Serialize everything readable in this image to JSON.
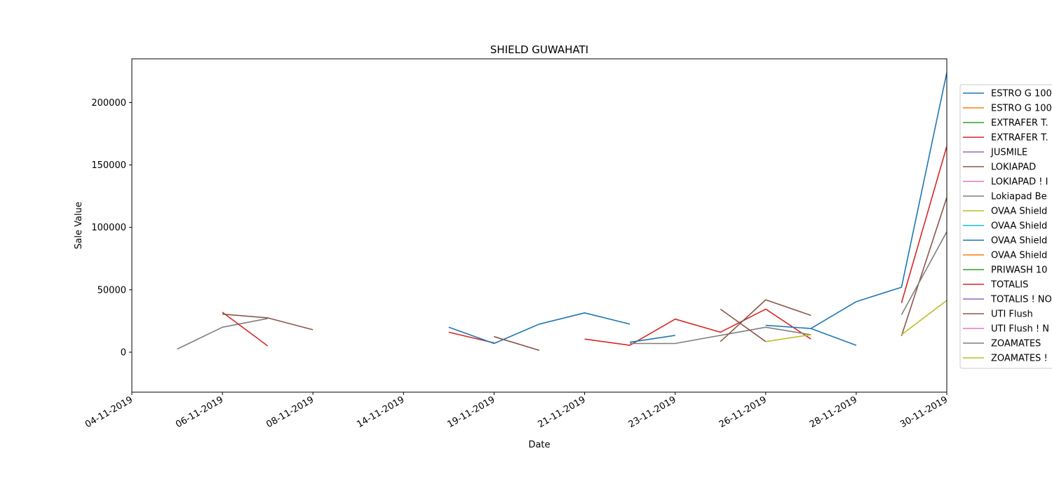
{
  "chart_data": {
    "type": "line",
    "title": "SHIELD GUWAHATI",
    "xlabel": "Date",
    "ylabel": "Sale Value",
    "ylim": [
      -32000,
      235000
    ],
    "yticks": [
      0,
      50000,
      100000,
      150000,
      200000
    ],
    "yticklabels": [
      "0",
      "50000",
      "100000",
      "150000",
      "200000"
    ],
    "xticklabels": [
      "04-11-2019",
      "06-11-2019",
      "08-11-2019",
      "14-11-2019",
      "19-11-2019",
      "21-11-2019",
      "23-11-2019",
      "26-11-2019",
      "28-11-2019",
      "30-11-2019"
    ],
    "grid": false,
    "legend_position": "right",
    "legend": [
      {
        "label": "ESTRO G 100",
        "color": "#1f77b4"
      },
      {
        "label": "ESTRO G 100",
        "color": "#ff7f0e"
      },
      {
        "label": "EXTRAFER T.",
        "color": "#2ca02c"
      },
      {
        "label": "EXTRAFER T.",
        "color": "#d62728"
      },
      {
        "label": "JUSMILE",
        "color": "#9467bd"
      },
      {
        "label": "LOKIAPAD",
        "color": "#8c564b"
      },
      {
        "label": "LOKIAPAD ! I",
        "color": "#e377c2"
      },
      {
        "label": "Lokiapad Be",
        "color": "#7f7f7f"
      },
      {
        "label": "OVAA Shield",
        "color": "#bcbd22"
      },
      {
        "label": "OVAA Shield",
        "color": "#17becf"
      },
      {
        "label": "OVAA Shield",
        "color": "#1f77b4"
      },
      {
        "label": "OVAA Shield",
        "color": "#ff7f0e"
      },
      {
        "label": "PRIWASH 10",
        "color": "#2ca02c"
      },
      {
        "label": "TOTALIS",
        "color": "#d62728"
      },
      {
        "label": "TOTALIS ! NO",
        "color": "#9467bd"
      },
      {
        "label": "UTI Flush",
        "color": "#8c564b"
      },
      {
        "label": "UTI Flush ! N",
        "color": "#e377c2"
      },
      {
        "label": "ZOAMATES",
        "color": "#7f7f7f"
      },
      {
        "label": "ZOAMATES !",
        "color": "#bcbd22"
      }
    ],
    "series": [
      {
        "color": "#7f7f7f",
        "x": [
          1,
          2,
          3
        ],
        "y": [
          2500,
          20000,
          27000
        ]
      },
      {
        "color": "#d62728",
        "x": [
          2,
          3
        ],
        "y": [
          32000,
          5000
        ]
      },
      {
        "color": "#8c564b",
        "x": [
          2,
          3,
          4
        ],
        "y": [
          30500,
          27500,
          18000
        ]
      },
      {
        "color": "#d62728",
        "x": [
          7,
          8
        ],
        "y": [
          16000,
          7500
        ]
      },
      {
        "color": "#1f77b4",
        "x": [
          7,
          8,
          9,
          10,
          11
        ],
        "y": [
          20000,
          7000,
          22500,
          31500,
          22500
        ]
      },
      {
        "color": "#8c564b",
        "x": [
          8,
          9
        ],
        "y": [
          12500,
          1500
        ]
      },
      {
        "color": "#d62728",
        "x": [
          10,
          11,
          12,
          13,
          14,
          15
        ],
        "y": [
          10500,
          5500,
          26500,
          16000,
          34500,
          10500
        ]
      },
      {
        "color": "#1f77b4",
        "x": [
          11,
          12
        ],
        "y": [
          8000,
          13500
        ]
      },
      {
        "color": "#7f7f7f",
        "x": [
          11,
          12,
          14,
          15
        ],
        "y": [
          7000,
          7000,
          20000,
          14000
        ]
      },
      {
        "color": "#8c564b",
        "x": [
          13,
          14
        ],
        "y": [
          34500,
          8500
        ]
      },
      {
        "color": "#8c564b",
        "x": [
          13,
          14,
          15
        ],
        "y": [
          8500,
          42000,
          29500
        ]
      },
      {
        "color": "#1f77b4",
        "x": [
          14,
          15,
          16
        ],
        "y": [
          21500,
          19000,
          5500
        ]
      },
      {
        "color": "#bcbd22",
        "x": [
          14,
          15
        ],
        "y": [
          8500,
          14000
        ]
      },
      {
        "color": "#1f77b4",
        "x": [
          15,
          16,
          17,
          18
        ],
        "y": [
          19000,
          40500,
          52000,
          224000
        ]
      },
      {
        "color": "#d62728",
        "x": [
          17,
          18
        ],
        "y": [
          39500,
          165000
        ]
      },
      {
        "color": "#8c564b",
        "x": [
          17,
          18
        ],
        "y": [
          13000,
          124000
        ]
      },
      {
        "color": "#7f7f7f",
        "x": [
          17,
          18
        ],
        "y": [
          30000,
          96500
        ]
      },
      {
        "color": "#bcbd22",
        "x": [
          17,
          18
        ],
        "y": [
          14000,
          41500
        ]
      }
    ]
  }
}
